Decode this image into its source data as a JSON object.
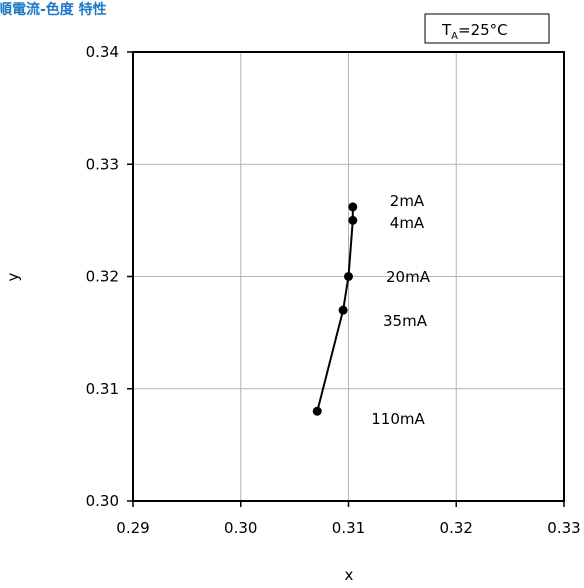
{
  "chart_data": {
    "type": "line",
    "title": "順電流-色度 特性",
    "xlabel": "x",
    "ylabel": "y",
    "xlim": [
      0.29,
      0.33
    ],
    "ylim": [
      0.3,
      0.34
    ],
    "x_ticks": [
      "0.29",
      "0.30",
      "0.31",
      "0.32",
      "0.33"
    ],
    "y_ticks": [
      "0.30",
      "0.31",
      "0.32",
      "0.33",
      "0.34"
    ],
    "grid": true,
    "condition": {
      "main": "T",
      "sub": "A",
      "value": "=25°C"
    },
    "series": [
      {
        "points": [
          {
            "x": 0.3104,
            "y": 0.3262,
            "label": "2mA"
          },
          {
            "x": 0.3104,
            "y": 0.325,
            "label": "4mA"
          },
          {
            "x": 0.31,
            "y": 0.32,
            "label": "20mA"
          },
          {
            "x": 0.3095,
            "y": 0.317,
            "label": "35mA"
          },
          {
            "x": 0.3071,
            "y": 0.308,
            "label": "110mA"
          }
        ]
      }
    ],
    "colors": {
      "title": "#1e78c8",
      "line": "#000000",
      "grid": "#b4b4b4"
    }
  }
}
